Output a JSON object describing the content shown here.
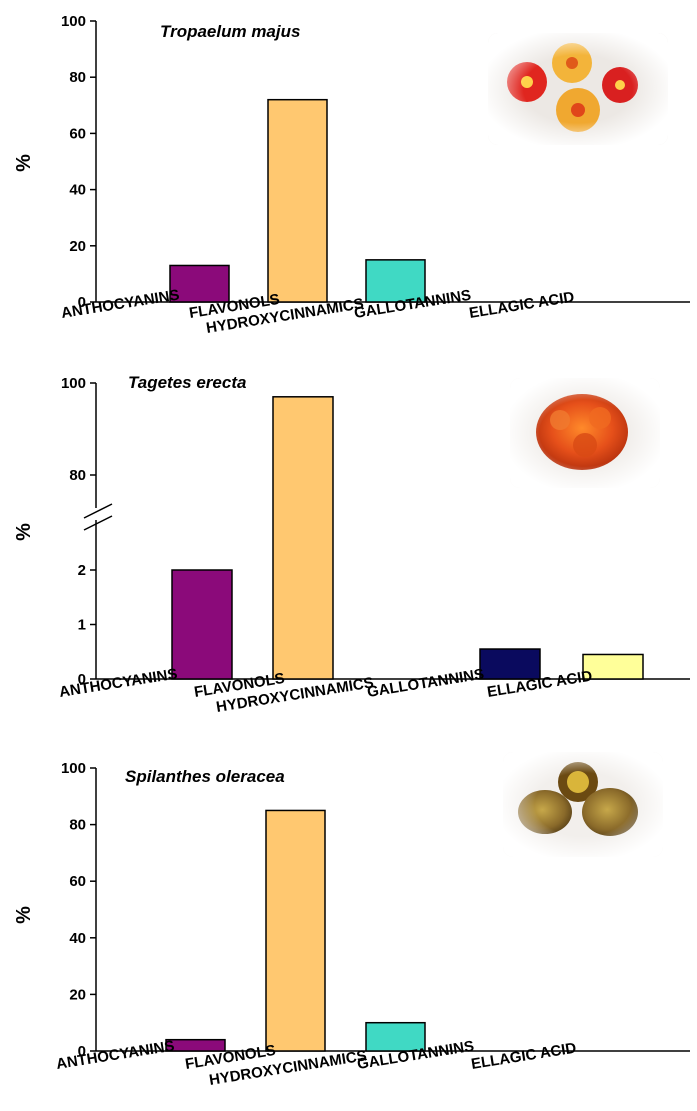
{
  "chart_data": [
    {
      "type": "bar",
      "title": "Tropaelum majus",
      "ylabel": "%",
      "ylim": [
        0,
        100
      ],
      "yticks": [
        0,
        20,
        40,
        60,
        80,
        100
      ],
      "categories": [
        "ANTHOCYANINS",
        "FLAVONOLS",
        "HYDROXYCINNAMICS",
        "GALLOTANNINS",
        "ELLAGIC ACID"
      ],
      "values": [
        13,
        72,
        15,
        0,
        0
      ],
      "colors": [
        "#8b0a7a",
        "#ffc870",
        "#40d9c4",
        "#0a0a5e",
        "#ffff99"
      ],
      "photo": "nasturtium flowers"
    },
    {
      "type": "bar",
      "title": "Tagetes erecta",
      "ylabel": "%",
      "axis_break": true,
      "yticks": [
        "0",
        "1",
        "2",
        "80",
        "100"
      ],
      "categories": [
        "ANTHOCYANINS",
        "FLAVONOLS",
        "HYDROXYCINNAMICS",
        "GALLOTANNINS",
        "ELLAGIC ACID"
      ],
      "values": [
        2,
        97,
        0,
        0.55,
        0.45
      ],
      "colors": [
        "#8b0a7a",
        "#ffc870",
        "#40d9c4",
        "#0a0a5e",
        "#ffff99"
      ],
      "photo": "marigold flower"
    },
    {
      "type": "bar",
      "title": "Spilanthes oleracea",
      "ylabel": "%",
      "ylim": [
        0,
        100
      ],
      "yticks": [
        0,
        20,
        40,
        60,
        80,
        100
      ],
      "categories": [
        "ANTHOCYANINS",
        "FLAVONOLS",
        "HYDROXYCINNAMICS",
        "GALLOTANNINS",
        "ELLAGIC ACID"
      ],
      "values": [
        4,
        85,
        10,
        0,
        0
      ],
      "colors": [
        "#8b0a7a",
        "#ffc870",
        "#40d9c4",
        "#0a0a5e",
        "#ffff99"
      ],
      "photo": "spilanthes flower heads"
    }
  ]
}
